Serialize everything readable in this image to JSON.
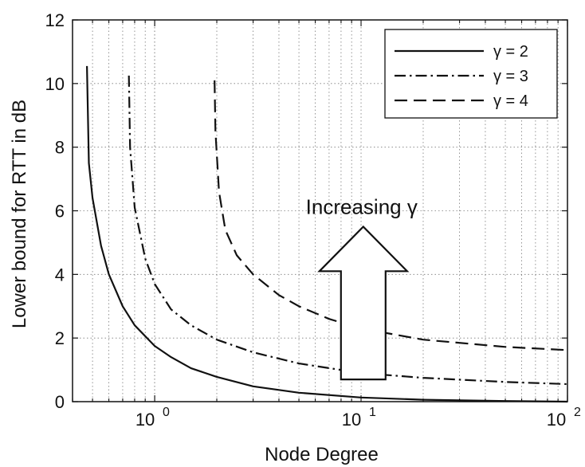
{
  "chart_data": {
    "type": "line",
    "title": "",
    "xlabel": "Node Degree",
    "ylabel": "Lower bound for RTT in dB",
    "xscale": "log",
    "xlim": [
      0.4,
      100
    ],
    "ylim": [
      0,
      12
    ],
    "grid": true,
    "legend_position": "top-right",
    "x_ticks": [
      {
        "value": 1,
        "label": "10",
        "exp": "0"
      },
      {
        "value": 10,
        "label": "10",
        "exp": "1"
      },
      {
        "value": 100,
        "label": "10",
        "exp": "2"
      }
    ],
    "y_ticks": [
      "0",
      "2",
      "4",
      "6",
      "8",
      "10",
      "12"
    ],
    "series": [
      {
        "name": "γ = 2",
        "style": "solid",
        "x": [
          0.47,
          0.48,
          0.5,
          0.55,
          0.6,
          0.7,
          0.8,
          1.0,
          1.2,
          1.5,
          2,
          3,
          5,
          10,
          20,
          50,
          100
        ],
        "y": [
          10.55,
          7.5,
          6.4,
          4.9,
          4.0,
          3.0,
          2.4,
          1.75,
          1.4,
          1.05,
          0.78,
          0.48,
          0.28,
          0.13,
          0.06,
          0.02,
          0.0
        ]
      },
      {
        "name": "γ = 3",
        "style": "dash-dot",
        "x": [
          0.75,
          0.76,
          0.8,
          0.9,
          1.0,
          1.2,
          1.5,
          2,
          3,
          5,
          10,
          20,
          50,
          100
        ],
        "y": [
          10.25,
          8.0,
          6.1,
          4.5,
          3.7,
          2.9,
          2.4,
          1.95,
          1.55,
          1.2,
          0.9,
          0.75,
          0.62,
          0.55
        ]
      },
      {
        "name": "γ = 4",
        "style": "dashed",
        "x": [
          1.95,
          1.97,
          2.05,
          2.2,
          2.5,
          3,
          4,
          5,
          7,
          10,
          20,
          50,
          100
        ],
        "y": [
          10.1,
          8.5,
          6.6,
          5.4,
          4.6,
          4.0,
          3.35,
          3.0,
          2.6,
          2.3,
          1.95,
          1.72,
          1.62
        ]
      }
    ],
    "annotation": {
      "text": "Increasing γ",
      "arrow_direction": "up",
      "arrow_x_range": [
        7,
        15
      ],
      "arrow_y_range": [
        0.7,
        5.5
      ]
    }
  }
}
